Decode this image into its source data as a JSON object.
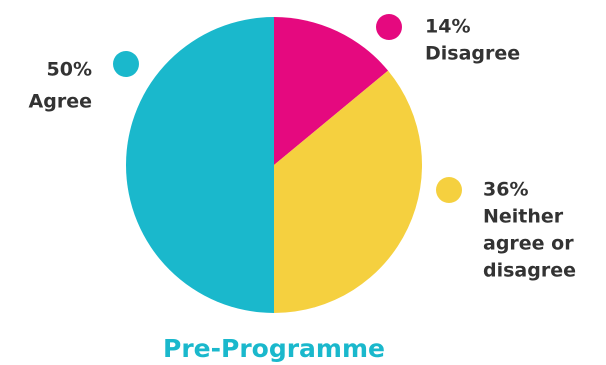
{
  "chart_data": {
    "type": "pie",
    "title": "Pre-Programme",
    "title_color": "#1ab8cc",
    "start_angle_deg": 0,
    "direction": "clockwise",
    "slices": [
      {
        "value_label": "14%",
        "value": 14,
        "lines": [
          "Disagree"
        ],
        "color": "#e5097f"
      },
      {
        "value_label": "36%",
        "value": 36,
        "lines": [
          "Neither",
          "agree or",
          "disagree"
        ],
        "color": "#f5d03f"
      },
      {
        "value_label": "50%",
        "value": 50,
        "lines": [
          "Agree"
        ],
        "color": "#1ab8cc"
      }
    ]
  }
}
